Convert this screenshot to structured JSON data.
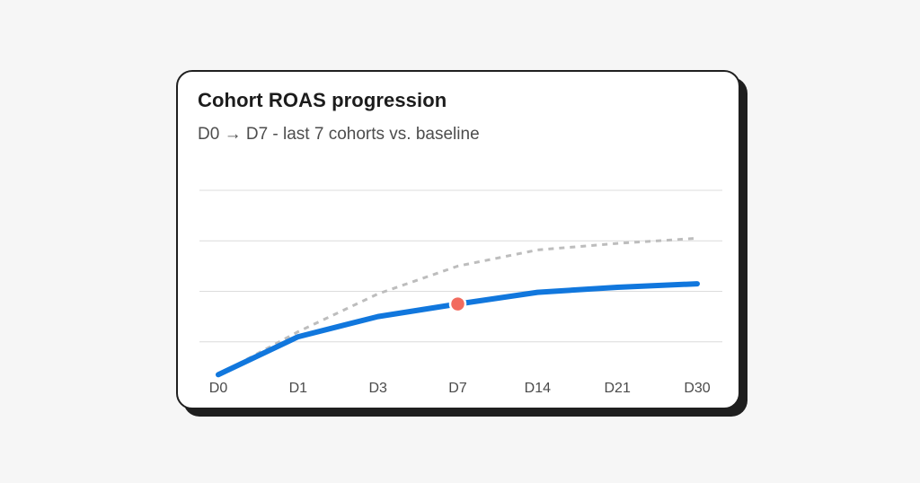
{
  "chart_data": {
    "type": "line",
    "title": "Cohort ROAS progression",
    "subtitle": "D0 → D7 - last 7 cohorts vs. baseline",
    "x": [
      "D0",
      "D1",
      "D3",
      "D7",
      "D14",
      "D21",
      "D30"
    ],
    "ylim": [
      0,
      4
    ],
    "grid": true,
    "series": [
      {
        "name": "",
        "style": "solid",
        "color": "#1177dd",
        "values": [
          0.35,
          1.1,
          1.5,
          1.75,
          1.98,
          2.08,
          2.15
        ]
      },
      {
        "name": "",
        "style": "dashed",
        "color": "#bdbdbd",
        "values": [
          0.35,
          1.2,
          1.95,
          2.5,
          2.82,
          2.95,
          3.05
        ]
      }
    ],
    "highlight": {
      "x": "D7",
      "series": 0,
      "color": "#f26b5e"
    }
  }
}
